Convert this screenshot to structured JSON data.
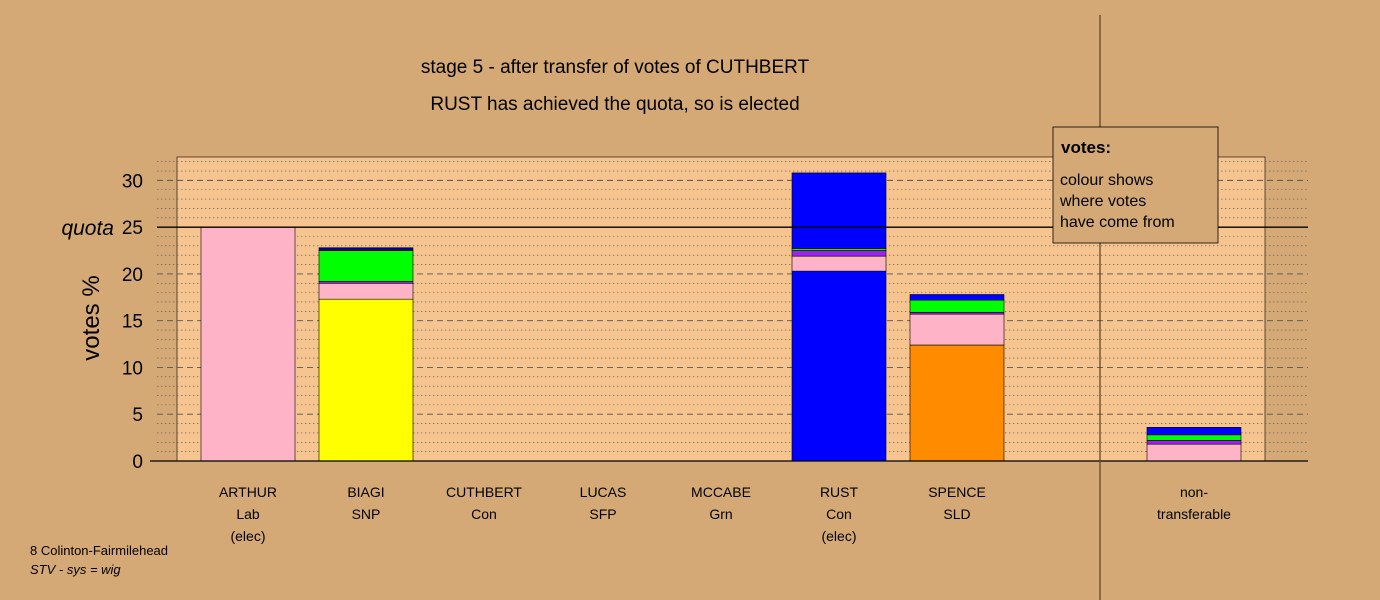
{
  "chart_data": {
    "type": "bar",
    "stacked": true,
    "title": "stage 5 - after transfer of votes of CUTHBERT",
    "subtitle": "RUST has achieved the quota, so is elected",
    "ylabel": "votes %",
    "ylim": [
      0,
      32.5
    ],
    "yticks": [
      0,
      5,
      10,
      15,
      20,
      25,
      30
    ],
    "quota_label": "quota",
    "quota_value": 25,
    "grid": true,
    "categories": [
      {
        "lines": [
          "ARTHUR",
          "Lab",
          "(elec)"
        ]
      },
      {
        "lines": [
          "BIAGI",
          "SNP"
        ]
      },
      {
        "lines": [
          "CUTHBERT",
          "Con"
        ]
      },
      {
        "lines": [
          "LUCAS",
          "SFP"
        ]
      },
      {
        "lines": [
          "MCCABE",
          "Grn"
        ]
      },
      {
        "lines": [
          "RUST",
          "Con",
          "(elec)"
        ]
      },
      {
        "lines": [
          "SPENCE",
          "SLD"
        ]
      },
      {
        "lines": [
          "non-",
          "transferable"
        ]
      }
    ],
    "segment_colors": [
      "#ffff00",
      "#0000ff",
      "#ff8c00",
      "#ffb3c6",
      "#a020f0",
      "#00ff00",
      "#00008b"
    ],
    "stacks": [
      [
        {
          "value": 25.0,
          "color": "#ffb3c6"
        }
      ],
      [
        {
          "value": 17.3,
          "color": "#ffff00"
        },
        {
          "value": 1.7,
          "color": "#ffb3c6"
        },
        {
          "value": 0.2,
          "color": "#a020f0"
        },
        {
          "value": 3.3,
          "color": "#00ff00"
        },
        {
          "value": 0.3,
          "color": "#00008b"
        }
      ],
      [],
      [],
      [],
      [
        {
          "value": 20.3,
          "color": "#0000ff"
        },
        {
          "value": 1.6,
          "color": "#ffb3c6"
        },
        {
          "value": 0.6,
          "color": "#a020f0"
        },
        {
          "value": 0.2,
          "color": "#00ff00"
        },
        {
          "value": 8.1,
          "color": "#0000ff"
        }
      ],
      [
        {
          "value": 12.4,
          "color": "#ff8c00"
        },
        {
          "value": 3.3,
          "color": "#ffb3c6"
        },
        {
          "value": 0.2,
          "color": "#a020f0"
        },
        {
          "value": 1.3,
          "color": "#00ff00"
        },
        {
          "value": 0.6,
          "color": "#0000ff"
        }
      ],
      [
        {
          "value": 1.8,
          "color": "#ffb3c6"
        },
        {
          "value": 0.4,
          "color": "#a020f0"
        },
        {
          "value": 0.6,
          "color": "#00ff00"
        },
        {
          "value": 0.8,
          "color": "#0000ff"
        }
      ]
    ]
  },
  "legend": {
    "title": "votes:",
    "lines": [
      "colour shows",
      "where votes",
      "have come from"
    ]
  },
  "footer": {
    "ward": "8 Colinton-Fairmilehead",
    "system": "STV - sys = wig"
  },
  "colors": {
    "background": "#d4a975",
    "plot_area": "#f6c48e"
  }
}
